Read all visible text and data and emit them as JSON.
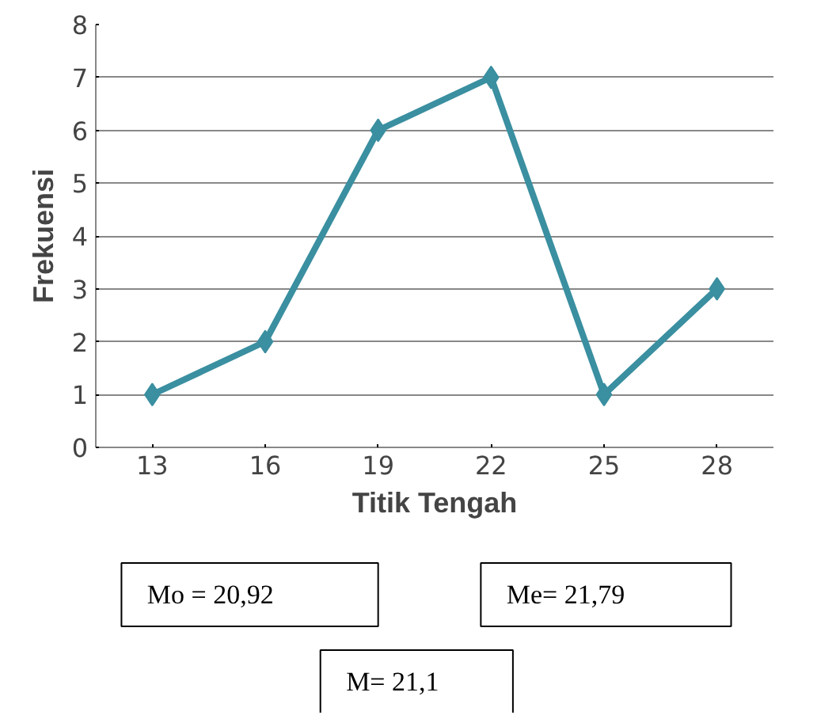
{
  "chart_data": {
    "type": "line",
    "xlabel": "Titik Tengah",
    "ylabel": "Frekuensi",
    "x": [
      13,
      16,
      19,
      22,
      25,
      28
    ],
    "series": [
      {
        "color": "#3a8fa0",
        "values": [
          1,
          2,
          6,
          7,
          1,
          3
        ]
      }
    ],
    "xlim": [
      11.5,
      29.5
    ],
    "xticks": [
      13,
      16,
      19,
      22,
      25,
      28
    ],
    "ylim": [
      0,
      8
    ],
    "yticks": [
      0,
      1,
      2,
      3,
      4,
      5,
      6,
      7,
      8
    ],
    "grid": "y",
    "marker": "diamond",
    "line_style": "solid",
    "annotations": [
      "Mo = 20,92",
      "Me= 21,79",
      "M= 21,1"
    ]
  }
}
